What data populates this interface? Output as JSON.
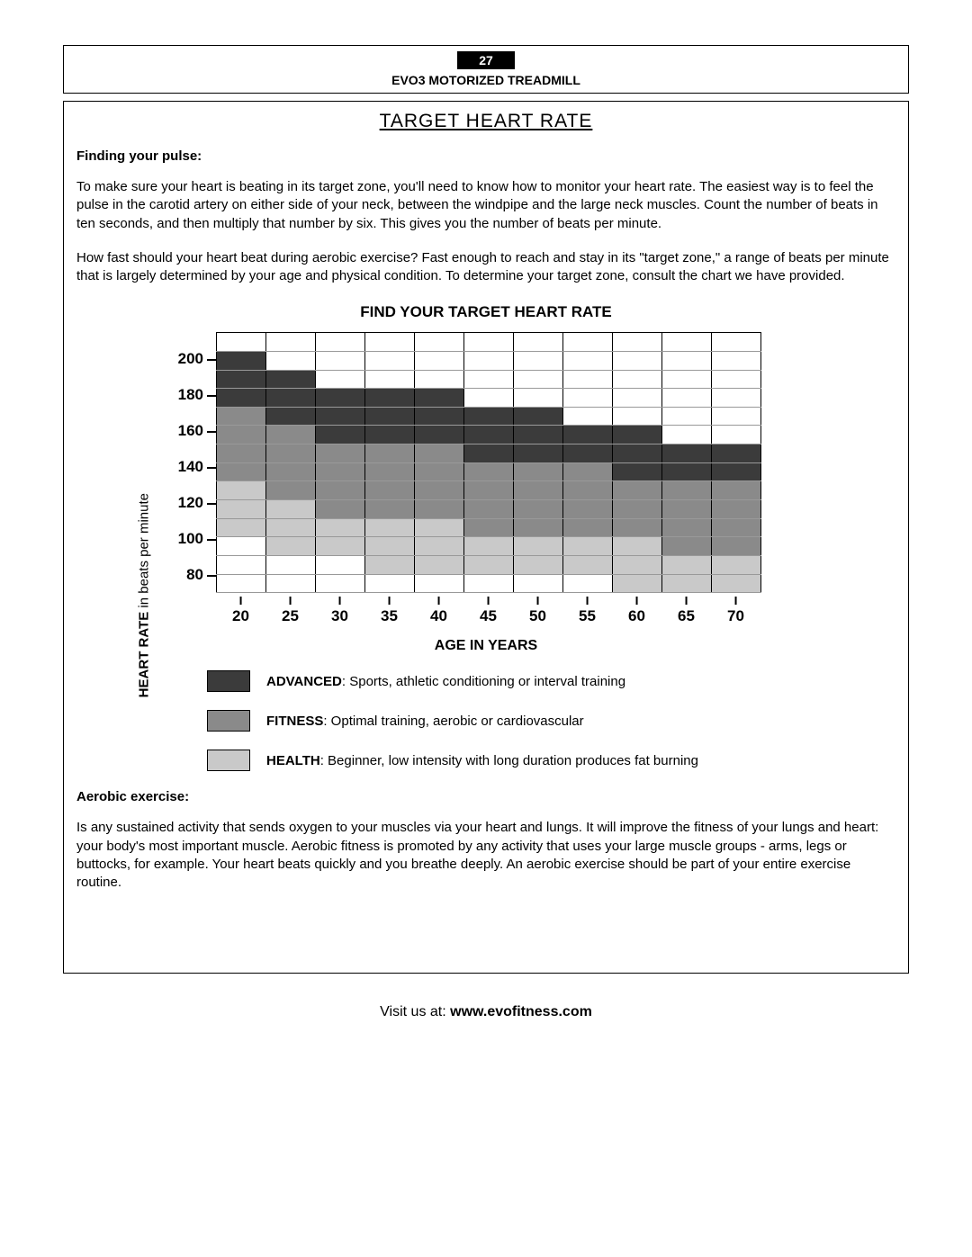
{
  "header": {
    "page_number": "27",
    "product": "EVO3 MOTORIZED TREADMILL"
  },
  "title": "TARGET HEART RATE",
  "section1": {
    "heading": "Finding your pulse",
    "p1": "To make sure your heart is beating in its target zone, you'll need to know how to monitor your heart rate.  The easiest way is to feel the pulse in the carotid artery on either side of your neck, between the windpipe and the large neck muscles.  Count the number of beats in ten seconds, and then multiply that number by six.  This gives you the number of beats per minute.",
    "p2": "How fast should your heart beat during aerobic exercise?  Fast enough to reach and stay in its \"target zone,\" a range of beats per minute that is largely determined by your age and physical condition.  To determine your target zone, consult the chart we have provided."
  },
  "chart": {
    "title": "FIND YOUR TARGET HEART RATE",
    "y_label_bold": "HEART RATE",
    "y_label_rest": " in beats per minute",
    "x_label": "AGE IN YEARS",
    "y_ticks": [
      "200",
      "180",
      "160",
      "140",
      "120",
      "100",
      "80"
    ],
    "x_ticks": [
      "20",
      "25",
      "30",
      "35",
      "40",
      "45",
      "50",
      "55",
      "60",
      "65",
      "70"
    ],
    "colors": {
      "white": "#ffffff",
      "advanced": "#3b3b3b",
      "fitness": "#8a8a8a",
      "health": "#c9c9c9"
    },
    "rows": [
      [
        "w",
        "w",
        "w",
        "w",
        "w",
        "w",
        "w",
        "w",
        "w",
        "w",
        "w"
      ],
      [
        "a",
        "w",
        "w",
        "w",
        "w",
        "w",
        "w",
        "w",
        "w",
        "w",
        "w"
      ],
      [
        "a",
        "a",
        "w",
        "w",
        "w",
        "w",
        "w",
        "w",
        "w",
        "w",
        "w"
      ],
      [
        "a",
        "a",
        "a",
        "a",
        "a",
        "w",
        "w",
        "w",
        "w",
        "w",
        "w"
      ],
      [
        "f",
        "a",
        "a",
        "a",
        "a",
        "a",
        "a",
        "w",
        "w",
        "w",
        "w"
      ],
      [
        "f",
        "f",
        "a",
        "a",
        "a",
        "a",
        "a",
        "a",
        "a",
        "w",
        "w"
      ],
      [
        "f",
        "f",
        "f",
        "f",
        "f",
        "a",
        "a",
        "a",
        "a",
        "a",
        "a"
      ],
      [
        "f",
        "f",
        "f",
        "f",
        "f",
        "f",
        "f",
        "f",
        "a",
        "a",
        "a"
      ],
      [
        "h",
        "f",
        "f",
        "f",
        "f",
        "f",
        "f",
        "f",
        "f",
        "f",
        "f"
      ],
      [
        "h",
        "h",
        "f",
        "f",
        "f",
        "f",
        "f",
        "f",
        "f",
        "f",
        "f"
      ],
      [
        "h",
        "h",
        "h",
        "h",
        "h",
        "f",
        "f",
        "f",
        "f",
        "f",
        "f"
      ],
      [
        "w",
        "h",
        "h",
        "h",
        "h",
        "h",
        "h",
        "h",
        "h",
        "f",
        "f"
      ],
      [
        "w",
        "w",
        "w",
        "h",
        "h",
        "h",
        "h",
        "h",
        "h",
        "h",
        "h"
      ],
      [
        "w",
        "w",
        "w",
        "w",
        "w",
        "w",
        "w",
        "w",
        "h",
        "h",
        "h"
      ]
    ]
  },
  "legend": {
    "items": [
      {
        "color": "#3b3b3b",
        "name": "ADVANCED",
        "desc": ":  Sports, athletic conditioning or interval training"
      },
      {
        "color": "#8a8a8a",
        "name": "FITNESS",
        "desc": ":  Optimal training, aerobic or cardiovascular"
      },
      {
        "color": "#c9c9c9",
        "name": "HEALTH",
        "desc": ":  Beginner, low intensity with long duration produces fat burning"
      }
    ]
  },
  "section2": {
    "heading": "Aerobic exercise",
    "p1": "Is any sustained activity that sends oxygen to your muscles via your heart and lungs.  It will improve the fitness of your lungs and heart:  your body's most important muscle.  Aerobic fitness is promoted by any activity that uses your large muscle groups - arms, legs or buttocks, for example.  Your heart beats quickly and you breathe deeply.  An aerobic exercise should be part of your entire exercise routine."
  },
  "footer": {
    "prefix": "Visit us at: ",
    "url": "www.evofitness.com"
  }
}
